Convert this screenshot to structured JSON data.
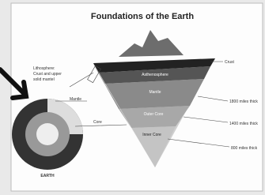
{
  "title": "Foundations of the Earth",
  "labels": {
    "lithosphere": [
      "Lithosphere:",
      "Crust and upper",
      "solid mantel"
    ],
    "mantle_left": "Mantle",
    "core_left": "Core",
    "earth": "EARTH",
    "crust": "Crust",
    "asthenosphere": "Asthenosphere"
  },
  "layers": [
    {
      "name": "Mantle",
      "thickness": "1800 miles thick"
    },
    {
      "name": "Outer Core",
      "thickness": "1400 miles thick"
    },
    {
      "name": "Inner Core",
      "thickness": "800 miles thick"
    }
  ]
}
